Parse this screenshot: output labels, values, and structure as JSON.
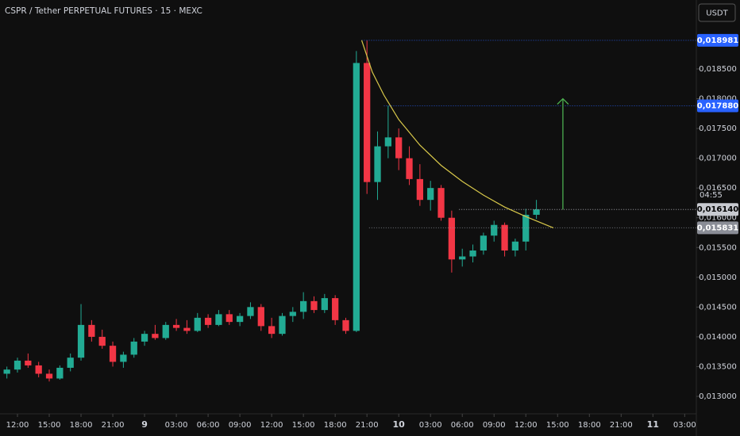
{
  "chart_data": {
    "type": "candlestick",
    "title": "CSPR / Tether PERPETUAL FUTURES · 15 · MEXC",
    "currency_button": "USDT",
    "countdown": "04:55",
    "colors": {
      "up": "#22ab94",
      "down": "#f23645"
    },
    "x": [
      11,
      12,
      13,
      14,
      15,
      16,
      17,
      18,
      19,
      20,
      21,
      22,
      23,
      24,
      25,
      26,
      27,
      28,
      29,
      30,
      31,
      32,
      33,
      34,
      35,
      36,
      37,
      38,
      39,
      40,
      41,
      42,
      43,
      44,
      45,
      46,
      47,
      48,
      49,
      50,
      51,
      52,
      53,
      54,
      55,
      56,
      57,
      58,
      59,
      60,
      61
    ],
    "open": [
      0.01338,
      0.01345,
      0.0136,
      0.01352,
      0.01338,
      0.0133,
      0.01348,
      0.01365,
      0.0142,
      0.014,
      0.01385,
      0.01358,
      0.0137,
      0.01392,
      0.01405,
      0.01398,
      0.0142,
      0.01415,
      0.0141,
      0.01432,
      0.0142,
      0.01438,
      0.01425,
      0.01435,
      0.0145,
      0.01418,
      0.01405,
      0.01435,
      0.01442,
      0.0146,
      0.01445,
      0.01465,
      0.01428,
      0.0141,
      0.0186,
      0.0166,
      0.0172,
      0.01735,
      0.017,
      0.01665,
      0.0163,
      0.0165,
      0.016,
      0.0153,
      0.01535,
      0.01545,
      0.0157,
      0.01588,
      0.01545,
      0.0156,
      0.01605
    ],
    "high": [
      0.0135,
      0.01365,
      0.01372,
      0.01358,
      0.01345,
      0.01352,
      0.01372,
      0.01455,
      0.01428,
      0.01412,
      0.01392,
      0.01375,
      0.01398,
      0.0141,
      0.0142,
      0.01425,
      0.0143,
      0.01428,
      0.0144,
      0.01438,
      0.01445,
      0.01445,
      0.0144,
      0.01458,
      0.01455,
      0.01432,
      0.0144,
      0.0145,
      0.01475,
      0.01468,
      0.01472,
      0.0147,
      0.01432,
      0.0188,
      0.018981,
      0.01745,
      0.01788,
      0.0175,
      0.0172,
      0.0169,
      0.01662,
      0.01655,
      0.01612,
      0.01548,
      0.01555,
      0.01575,
      0.01595,
      0.01592,
      0.01565,
      0.01615,
      0.0163
    ],
    "low": [
      0.0133,
      0.0134,
      0.01348,
      0.01332,
      0.01325,
      0.01328,
      0.01342,
      0.0136,
      0.01392,
      0.0138,
      0.0135,
      0.01348,
      0.01365,
      0.01385,
      0.01395,
      0.01395,
      0.0141,
      0.01405,
      0.01408,
      0.01415,
      0.01418,
      0.0142,
      0.01418,
      0.0143,
      0.0141,
      0.01398,
      0.01402,
      0.01425,
      0.0143,
      0.0144,
      0.0144,
      0.0142,
      0.01405,
      0.01408,
      0.0164,
      0.0163,
      0.017,
      0.0168,
      0.01655,
      0.0162,
      0.01612,
      0.01595,
      0.01508,
      0.01518,
      0.01525,
      0.01538,
      0.0156,
      0.01535,
      0.01535,
      0.01545,
      0.01598
    ],
    "close": [
      0.01345,
      0.0136,
      0.01352,
      0.01338,
      0.0133,
      0.01348,
      0.01365,
      0.0142,
      0.014,
      0.01385,
      0.01358,
      0.0137,
      0.01392,
      0.01405,
      0.01398,
      0.0142,
      0.01415,
      0.0141,
      0.01432,
      0.0142,
      0.01438,
      0.01425,
      0.01435,
      0.0145,
      0.01418,
      0.01405,
      0.01435,
      0.01442,
      0.0146,
      0.01445,
      0.01465,
      0.01428,
      0.0141,
      0.0186,
      0.0166,
      0.0172,
      0.01735,
      0.017,
      0.01665,
      0.0163,
      0.0165,
      0.016,
      0.0153,
      0.01535,
      0.01545,
      0.0157,
      0.01588,
      0.01545,
      0.0156,
      0.01605,
      0.01614
    ],
    "xlim": [
      10.35,
      76.1
    ],
    "xticks": [
      {
        "value": 12,
        "label": "12:00"
      },
      {
        "value": 15,
        "label": "15:00"
      },
      {
        "value": 18,
        "label": "18:00"
      },
      {
        "value": 21,
        "label": "21:00"
      },
      {
        "value": 24,
        "label": "9"
      },
      {
        "value": 27,
        "label": "03:00"
      },
      {
        "value": 30,
        "label": "06:00"
      },
      {
        "value": 33,
        "label": "09:00"
      },
      {
        "value": 36,
        "label": "12:00"
      },
      {
        "value": 39,
        "label": "15:00"
      },
      {
        "value": 42,
        "label": "18:00"
      },
      {
        "value": 45,
        "label": "21:00"
      },
      {
        "value": 48,
        "label": "10"
      },
      {
        "value": 51,
        "label": "03:00"
      },
      {
        "value": 54,
        "label": "06:00"
      },
      {
        "value": 57,
        "label": "09:00"
      },
      {
        "value": 60,
        "label": "12:00"
      },
      {
        "value": 63,
        "label": "15:00"
      },
      {
        "value": 66,
        "label": "18:00"
      },
      {
        "value": 69,
        "label": "21:00"
      },
      {
        "value": 72,
        "label": "11"
      },
      {
        "value": 75,
        "label": "03:00"
      }
    ],
    "ylim": [
      0.012707,
      0.019658
    ],
    "yticks": [
      {
        "value": 0.013,
        "label": "0,013000"
      },
      {
        "value": 0.0135,
        "label": "0,013500"
      },
      {
        "value": 0.014,
        "label": "0,014000"
      },
      {
        "value": 0.0145,
        "label": "0,014500"
      },
      {
        "value": 0.015,
        "label": "0,015000"
      },
      {
        "value": 0.0155,
        "label": "0,015500"
      },
      {
        "value": 0.016,
        "label": "0,016000"
      },
      {
        "value": 0.0165,
        "label": "0,016500"
      },
      {
        "value": 0.017,
        "label": "0,017000"
      },
      {
        "value": 0.0175,
        "label": "0,017500"
      },
      {
        "value": 0.018,
        "label": "0,018000"
      },
      {
        "value": 0.0185,
        "label": "0,018500"
      }
    ],
    "levels": [
      {
        "value": 0.018981,
        "label": "0,018981",
        "from": 44.5,
        "color": "#2962ff",
        "text_color": "#ffffff"
      },
      {
        "value": 0.01788,
        "label": "0,017880",
        "from": 46.6,
        "color": "#2962ff",
        "text_color": "#ffffff"
      },
      {
        "value": 0.01614,
        "label": "0,016140",
        "from": 53.7,
        "color": "#c8cad0",
        "text_color": "#000000"
      },
      {
        "value": 0.015831,
        "label": "0,015831",
        "from": 45.2,
        "color": "#8a8d96",
        "text_color": "#ffffff"
      }
    ],
    "curve": {
      "color": "#d8c84a",
      "x": [
        44.5,
        45.5,
        46.6,
        48,
        50,
        52,
        54,
        56,
        58,
        60,
        62.6
      ],
      "y": [
        0.018981,
        0.01845,
        0.01806,
        0.01765,
        0.01722,
        0.01688,
        0.01661,
        0.01638,
        0.01618,
        0.01602,
        0.01583
      ]
    },
    "arrow": {
      "color": "#4caf50",
      "x": 63.5,
      "from": 0.01614,
      "to": 0.018
    }
  }
}
